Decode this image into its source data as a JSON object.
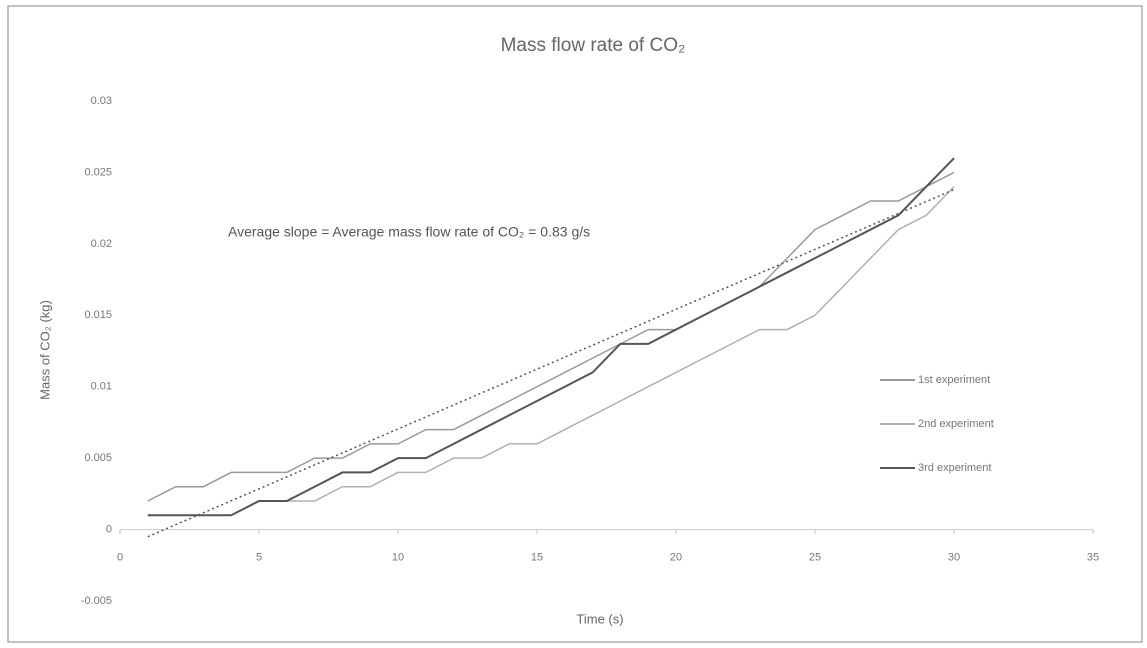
{
  "chart_data": {
    "type": "line",
    "title": "Mass flow rate of CO₂",
    "xlabel": "Time (s)",
    "ylabel": "Mass of CO₂ (kg)",
    "annotation": "Average slope = Average mass flow rate of CO₂ = 0.83 g/s",
    "x": [
      1,
      2,
      3,
      4,
      5,
      6,
      7,
      8,
      9,
      10,
      11,
      12,
      13,
      14,
      15,
      16,
      17,
      18,
      19,
      20,
      21,
      22,
      23,
      24,
      25,
      26,
      27,
      28,
      29,
      30
    ],
    "series": [
      {
        "name": "1st experiment",
        "color": "#9a9a9a",
        "values": [
          0.002,
          0.003,
          0.003,
          0.004,
          0.004,
          0.004,
          0.005,
          0.005,
          0.006,
          0.006,
          0.007,
          0.007,
          0.008,
          0.009,
          0.01,
          0.011,
          0.012,
          0.013,
          0.014,
          0.014,
          0.015,
          0.016,
          0.017,
          0.019,
          0.021,
          0.022,
          0.023,
          0.023,
          0.024,
          0.025
        ]
      },
      {
        "name": "2nd experiment",
        "color": "#b0b0b0",
        "values": [
          0.001,
          0.001,
          0.001,
          0.001,
          0.002,
          0.002,
          0.002,
          0.003,
          0.003,
          0.004,
          0.004,
          0.005,
          0.005,
          0.006,
          0.006,
          0.007,
          0.008,
          0.009,
          0.01,
          0.011,
          0.012,
          0.013,
          0.014,
          0.014,
          0.015,
          0.017,
          0.019,
          0.021,
          0.022,
          0.024
        ]
      },
      {
        "name": "3rd experiment",
        "color": "#555555",
        "values": [
          0.001,
          0.001,
          0.001,
          0.001,
          0.002,
          0.002,
          0.003,
          0.004,
          0.004,
          0.005,
          0.005,
          0.006,
          0.007,
          0.008,
          0.009,
          0.01,
          0.011,
          0.013,
          0.013,
          0.014,
          0.015,
          0.016,
          0.017,
          0.018,
          0.019,
          0.02,
          0.021,
          0.022,
          0.024,
          0.026
        ]
      }
    ],
    "trend": {
      "x": [
        1,
        30
      ],
      "values": [
        -0.0005,
        0.0238
      ],
      "color": "#555555"
    },
    "xlim": [
      0,
      35
    ],
    "xticks": [
      0,
      5,
      10,
      15,
      20,
      25,
      30,
      35
    ],
    "ylim": [
      -0.005,
      0.03
    ],
    "yticks": [
      -0.005,
      0,
      0.005,
      0.01,
      0.015,
      0.02,
      0.025,
      0.03
    ],
    "legend": "right"
  }
}
